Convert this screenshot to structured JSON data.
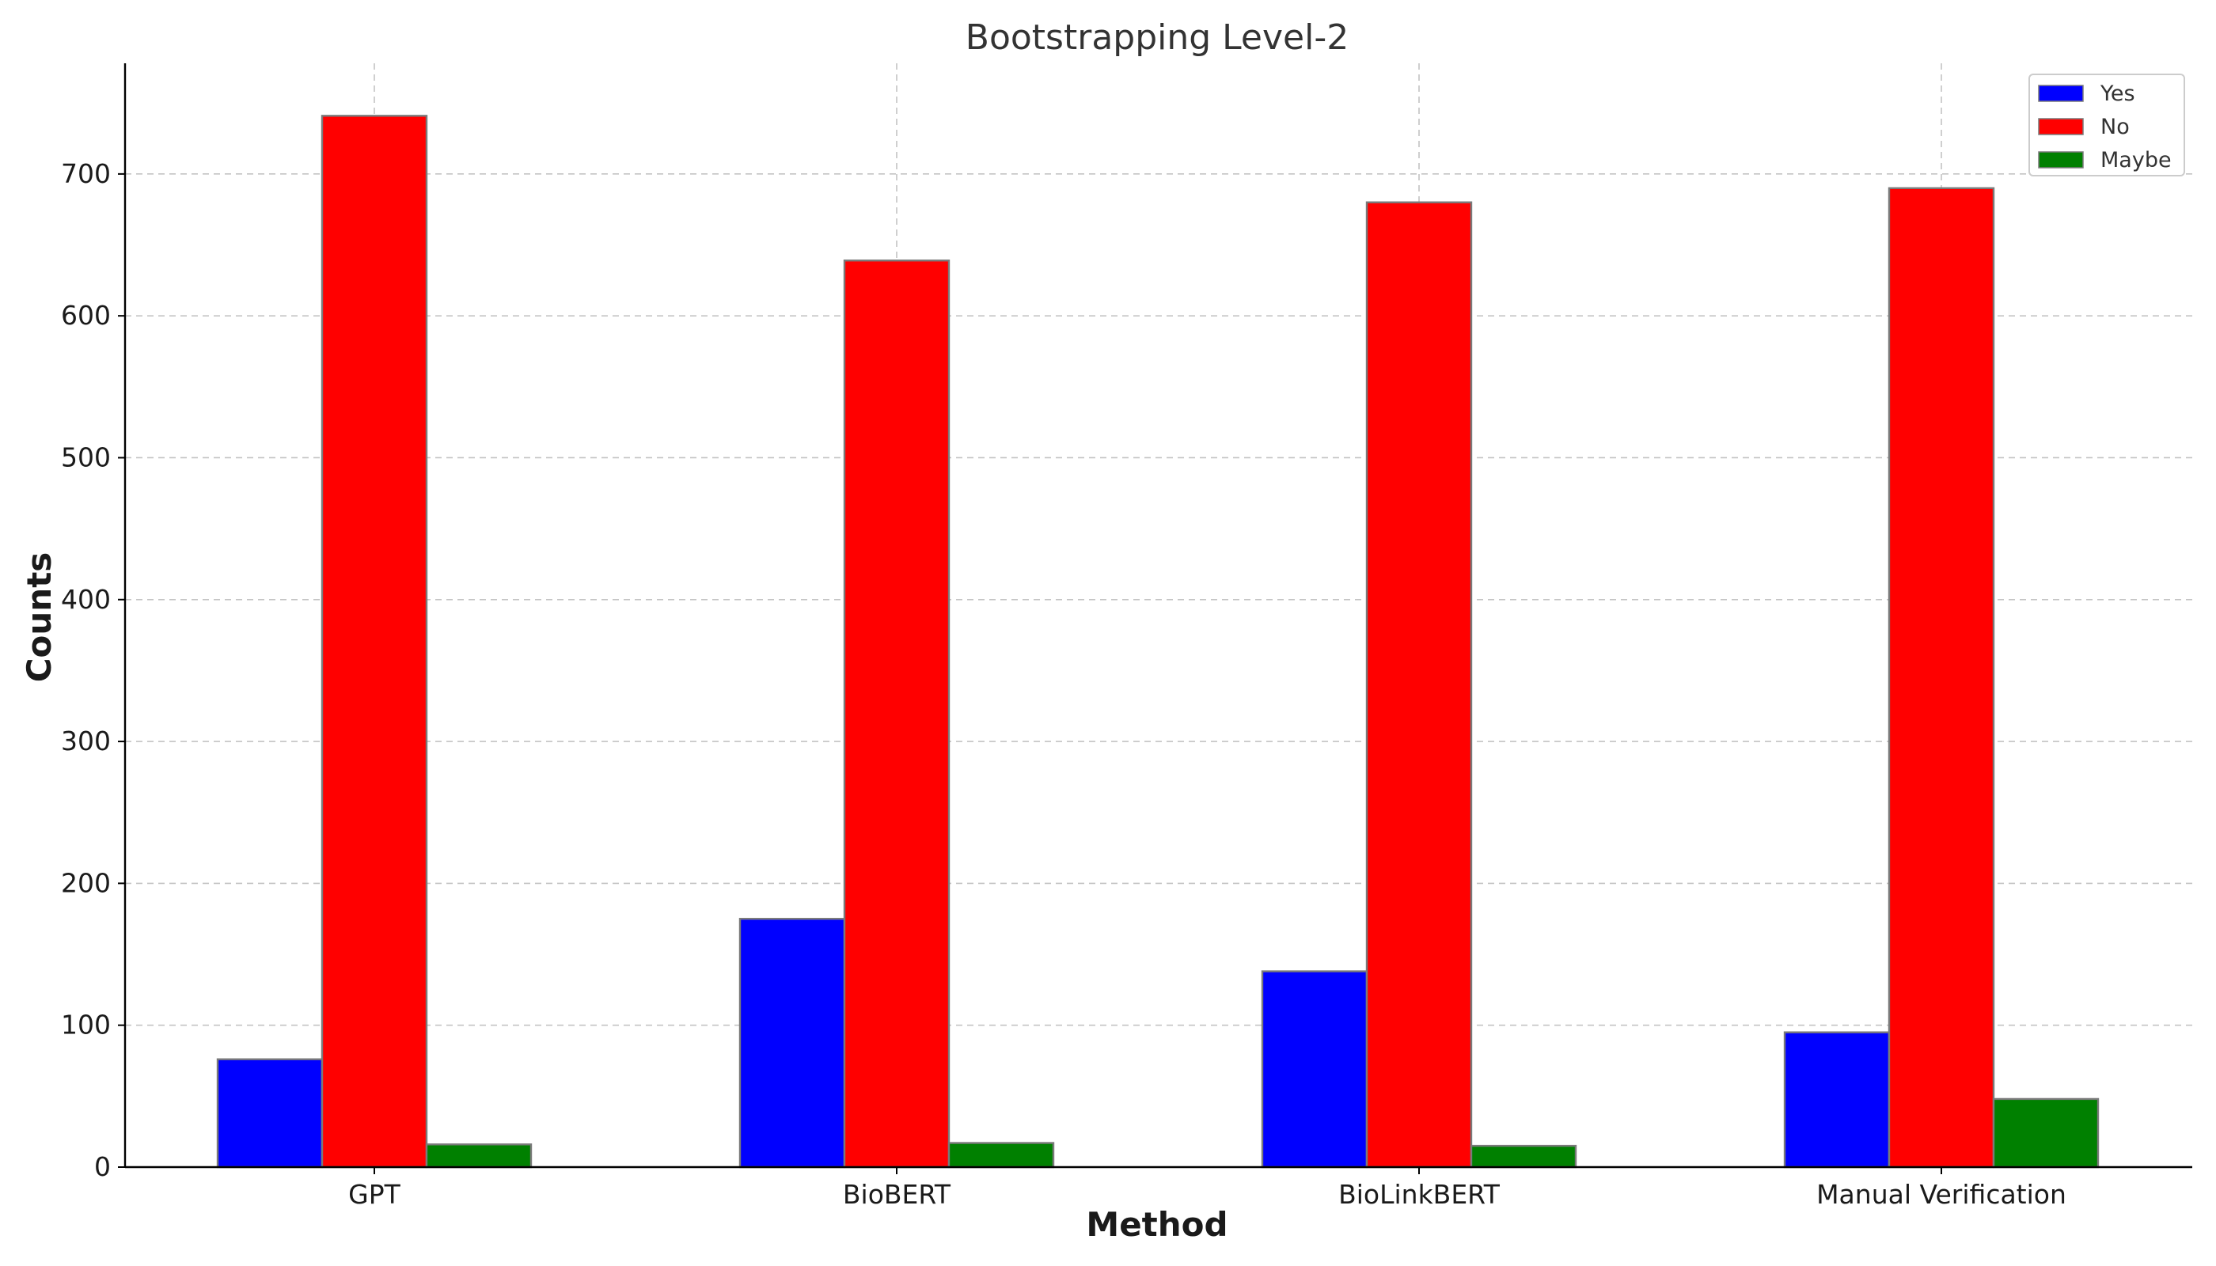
{
  "chart_data": {
    "type": "bar",
    "title": "Bootstrapping Level-2",
    "xlabel": "Method",
    "ylabel": "Counts",
    "categories": [
      "GPT",
      "BioBERT",
      "BioLinkBERT",
      "Manual Verification"
    ],
    "series": [
      {
        "name": "Yes",
        "color": "#0000ff",
        "values": [
          76,
          175,
          138,
          95
        ]
      },
      {
        "name": "No",
        "color": "#ff0000",
        "values": [
          741,
          639,
          680,
          690
        ]
      },
      {
        "name": "Maybe",
        "color": "#008000",
        "values": [
          16,
          17,
          15,
          48
        ]
      }
    ],
    "ylim": [
      0,
      778
    ],
    "yticks": [
      0,
      100,
      200,
      300,
      400,
      500,
      600,
      700
    ],
    "grid": true,
    "legend_position": "top-right"
  }
}
